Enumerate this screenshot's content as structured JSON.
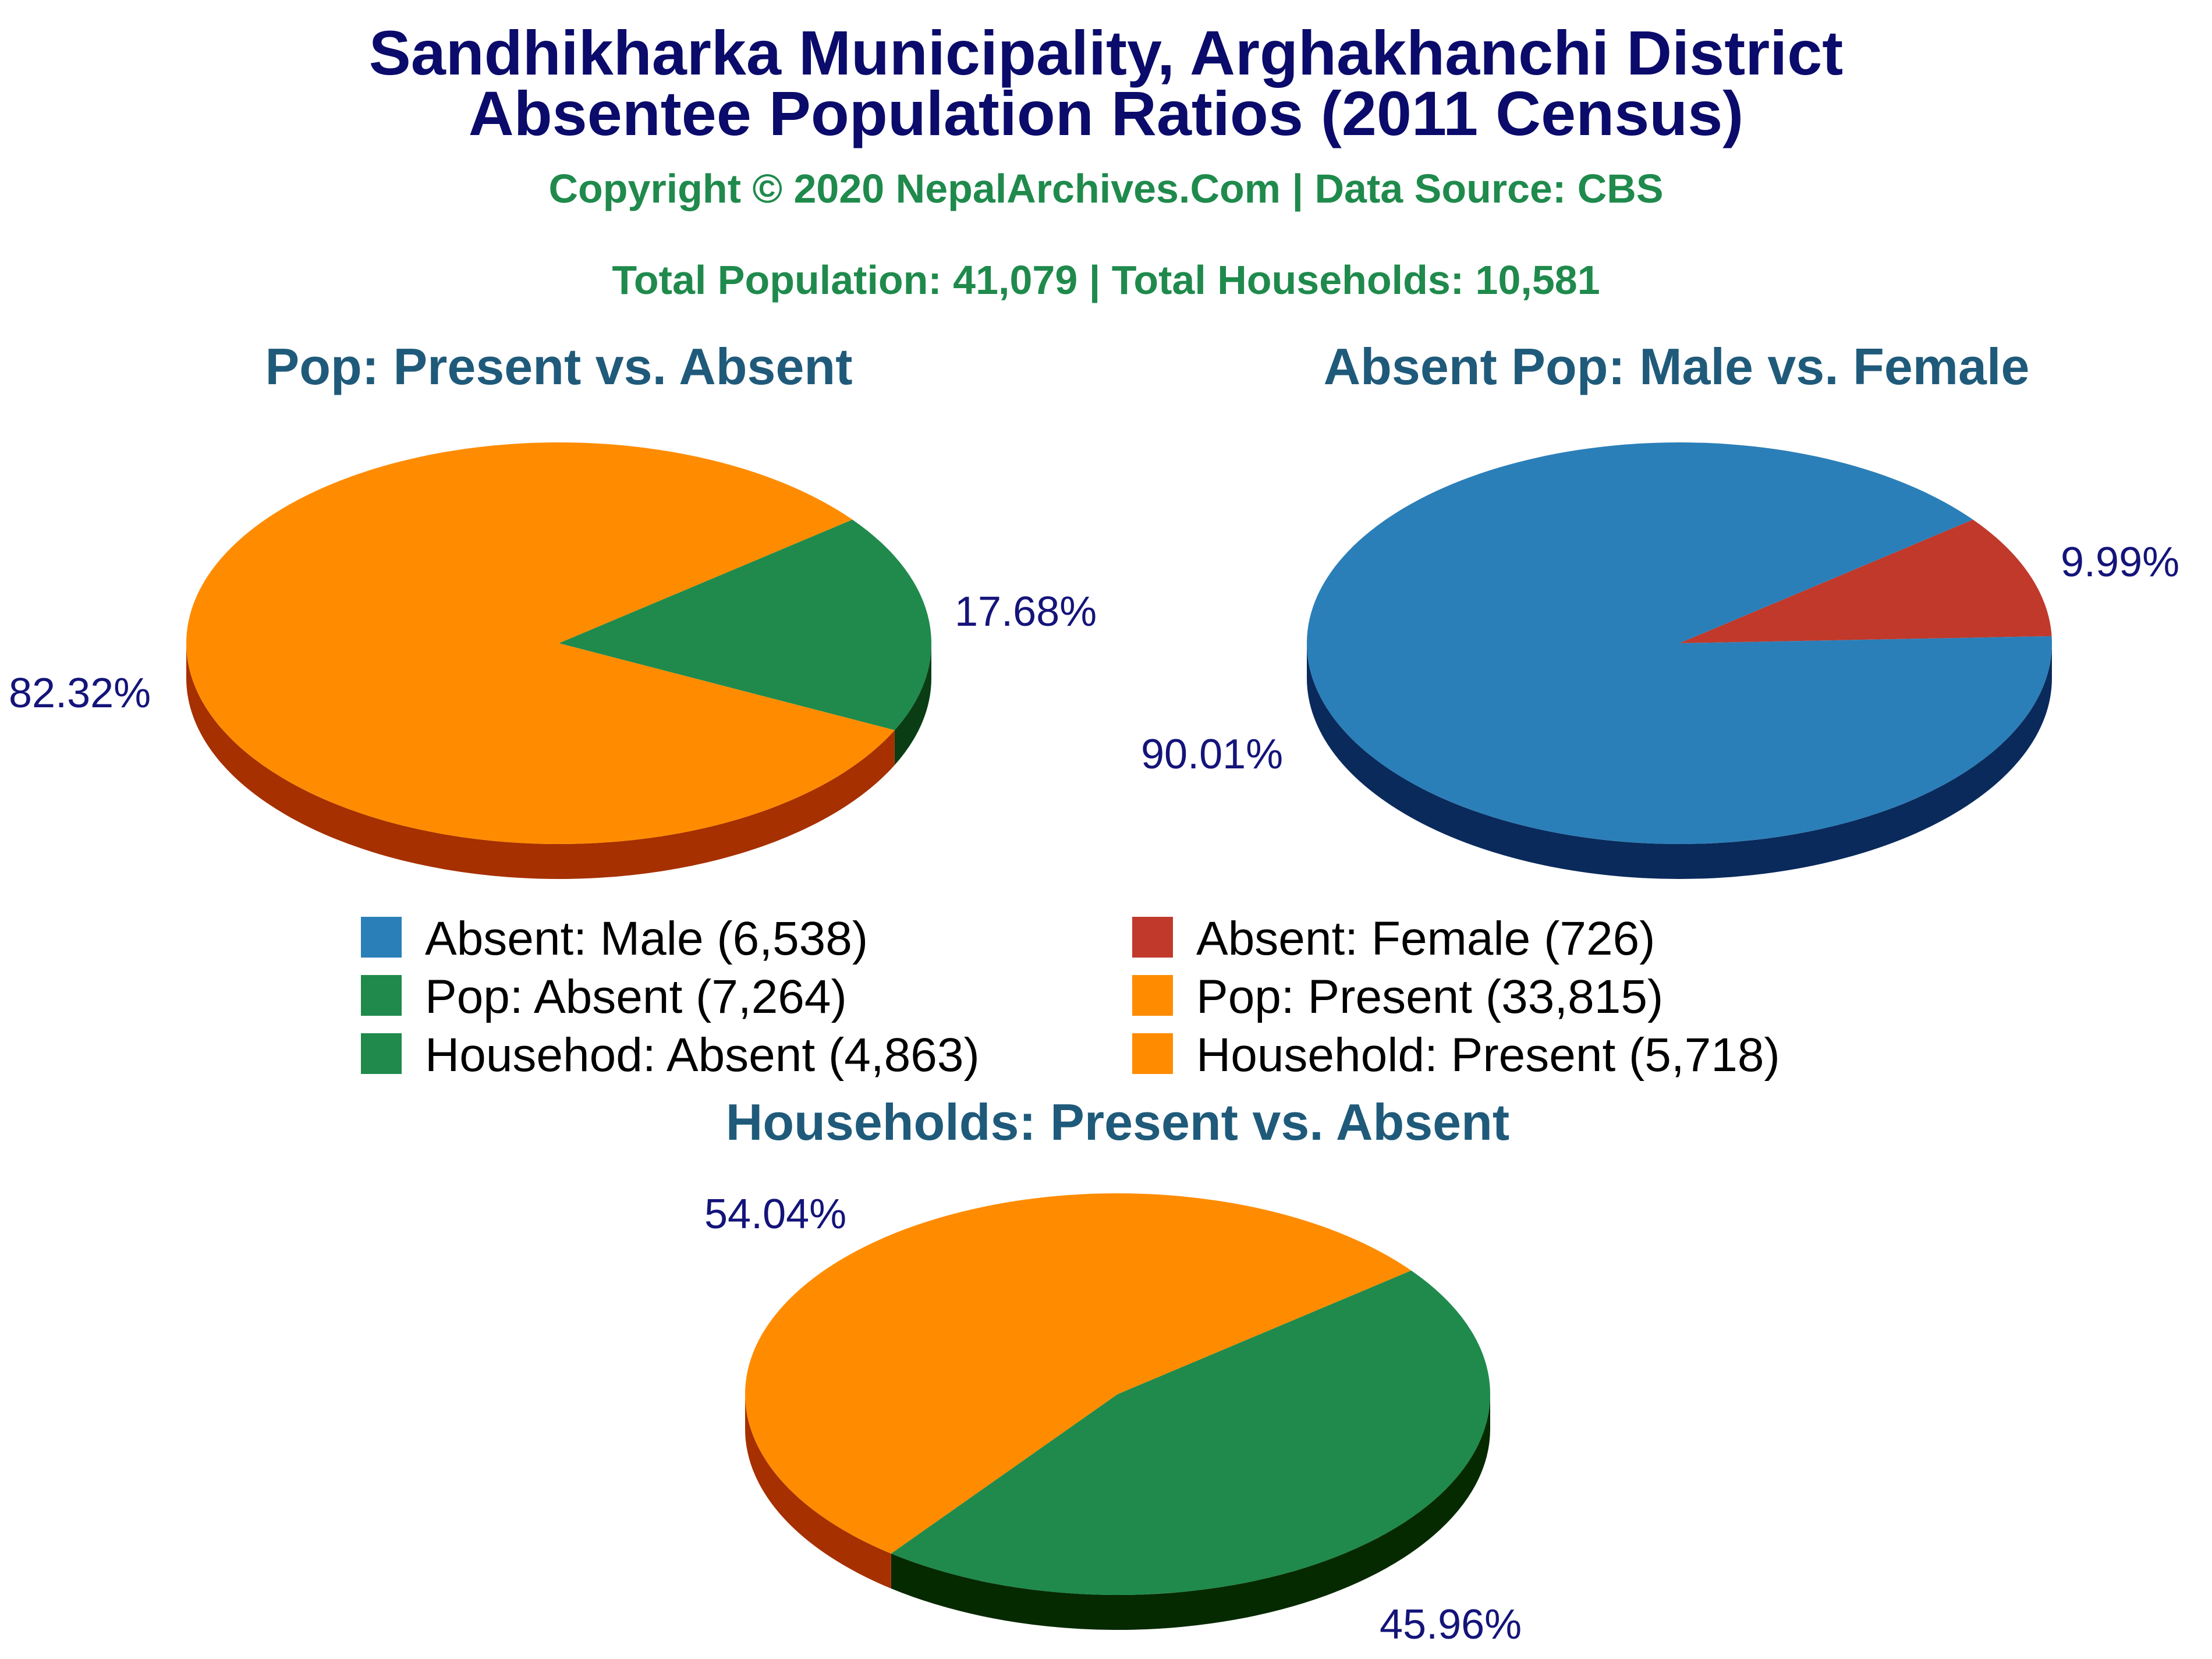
{
  "header": {
    "title_line1": "Sandhikharka Municipality, Arghakhanchi District",
    "title_line2": "Absentee Population Ratios (2011 Census)",
    "copyright": "Copyright © 2020 NepalArchives.Com | Data Source: CBS",
    "totals": "Total Population: 41,079 | Total Households: 10,581"
  },
  "legend": [
    {
      "label": "Absent: Male (6,538)",
      "color": "#2b7fb8"
    },
    {
      "label": "Absent: Female (726)",
      "color": "#c0392b"
    },
    {
      "label": "Pop: Absent (7,264)",
      "color": "#1f8a4c"
    },
    {
      "label": "Pop: Present (33,815)",
      "color": "#ff8c00"
    },
    {
      "label": "Househod: Absent (4,863)",
      "color": "#1f8a4c"
    },
    {
      "label": "Household: Present (5,718)",
      "color": "#ff8c00"
    }
  ],
  "chart_data": [
    {
      "type": "pie",
      "title": "Pop: Present vs. Absent",
      "slices": [
        {
          "name": "Pop: Absent",
          "value": 7264,
          "percent": "17.68%",
          "color": "#1f8a4c",
          "side_color": "#0b3d14"
        },
        {
          "name": "Pop: Present",
          "value": 33815,
          "percent": "82.32%",
          "color": "#ff8c00",
          "side_color": "#a63000"
        }
      ]
    },
    {
      "type": "pie",
      "title": "Absent Pop: Male vs. Female",
      "slices": [
        {
          "name": "Absent: Female",
          "value": 726,
          "percent": "9.99%",
          "color": "#c0392b",
          "side_color": "#7a1a12"
        },
        {
          "name": "Absent: Male",
          "value": 6538,
          "percent": "90.01%",
          "color": "#2b7fb8",
          "side_color": "#0a2a5c"
        }
      ]
    },
    {
      "type": "pie",
      "title": "Households: Present vs. Absent",
      "slices": [
        {
          "name": "Househod: Absent",
          "value": 4863,
          "percent": "45.96%",
          "color": "#1f8a4c",
          "side_color": "#062a00"
        },
        {
          "name": "Household: Present",
          "value": 5718,
          "percent": "54.04%",
          "color": "#ff8c00",
          "side_color": "#a63000"
        }
      ]
    }
  ]
}
